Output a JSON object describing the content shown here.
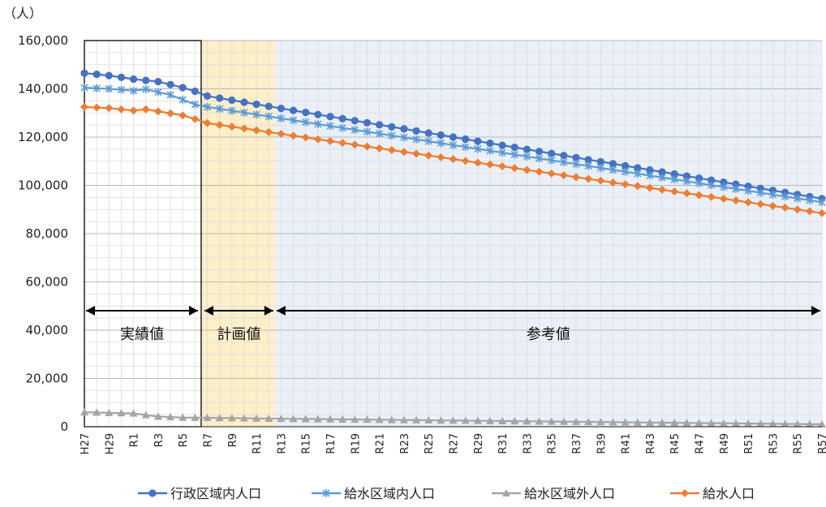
{
  "chart_data": {
    "type": "line",
    "unit_label": "（人）",
    "ylim": [
      0,
      160000
    ],
    "yticks": [
      "0",
      "20,000",
      "40,000",
      "60,000",
      "80,000",
      "100,000",
      "120,000",
      "140,000",
      "160,000"
    ],
    "ytick_values": [
      0,
      20000,
      40000,
      60000,
      80000,
      100000,
      120000,
      140000,
      160000
    ],
    "grid": true,
    "legend_position": "bottom",
    "x": [
      "H27",
      "H28",
      "H29",
      "H30",
      "R1",
      "R2",
      "R3",
      "R4",
      "R5",
      "R6",
      "R7",
      "R8",
      "R9",
      "R10",
      "R11",
      "R12",
      "R13",
      "R14",
      "R15",
      "R16",
      "R17",
      "R18",
      "R19",
      "R20",
      "R21",
      "R22",
      "R23",
      "R24",
      "R25",
      "R26",
      "R27",
      "R28",
      "R29",
      "R30",
      "R31",
      "R32",
      "R33",
      "R34",
      "R35",
      "R36",
      "R37",
      "R38",
      "R39",
      "R40",
      "R41",
      "R42",
      "R43",
      "R44",
      "R45",
      "R46",
      "R47",
      "R48",
      "R49",
      "R50",
      "R51",
      "R52",
      "R53",
      "R54",
      "R55",
      "R56",
      "R57"
    ],
    "x_tick_labels": [
      "H27",
      "H29",
      "R1",
      "R3",
      "R5",
      "R7",
      "R9",
      "R11",
      "R13",
      "R15",
      "R17",
      "R19",
      "R21",
      "R23",
      "R25",
      "R27",
      "R29",
      "R31",
      "R33",
      "R35",
      "R37",
      "R39",
      "R41",
      "R43",
      "R45",
      "R47",
      "R49",
      "R51",
      "R53",
      "R55",
      "R57"
    ],
    "periods": [
      {
        "label": "実績値",
        "from": "H27",
        "to": "R6",
        "color": "#ffffff"
      },
      {
        "label": "計画値",
        "from": "R7",
        "to": "R12",
        "color": "#fdefc8"
      },
      {
        "label": "参考値",
        "from": "R13",
        "to": "R57",
        "color": "#eaf0f8"
      }
    ],
    "series": [
      {
        "name": "行政区域内人口",
        "color": "#4472c4",
        "marker": "circle",
        "start": 146500,
        "points": [
          [
            0,
            146500
          ],
          [
            2,
            145500
          ],
          [
            4,
            144000
          ],
          [
            6,
            143000
          ],
          [
            8,
            140500
          ],
          [
            9,
            139000
          ],
          [
            10,
            137000
          ],
          [
            60,
            94500
          ]
        ]
      },
      {
        "name": "給水区域内人口",
        "color": "#5b9bd5",
        "marker": "star",
        "start": 140500,
        "points": [
          [
            0,
            140500
          ],
          [
            2,
            140000
          ],
          [
            4,
            139200
          ],
          [
            5,
            139800
          ],
          [
            7,
            137500
          ],
          [
            9,
            133500
          ],
          [
            10,
            132500
          ],
          [
            60,
            93000
          ]
        ]
      },
      {
        "name": "給水区域外人口",
        "color": "#a5a5a5",
        "marker": "triangle",
        "start": 6000,
        "points": [
          [
            0,
            6000
          ],
          [
            4,
            5500
          ],
          [
            6,
            4200
          ],
          [
            8,
            3800
          ],
          [
            10,
            3700
          ],
          [
            16,
            3300
          ],
          [
            60,
            1000
          ]
        ]
      },
      {
        "name": "給水人口",
        "color": "#ed7d31",
        "marker": "diamond",
        "start": 132500,
        "points": [
          [
            0,
            132500
          ],
          [
            2,
            132000
          ],
          [
            4,
            131000
          ],
          [
            5,
            131500
          ],
          [
            8,
            129000
          ],
          [
            9,
            127500
          ],
          [
            10,
            125800
          ],
          [
            60,
            88500
          ]
        ]
      }
    ]
  }
}
